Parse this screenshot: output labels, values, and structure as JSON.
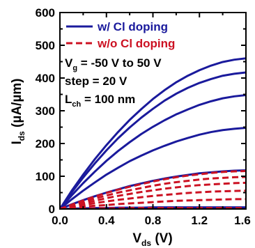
{
  "chart_data": {
    "type": "line",
    "xlabel_main": "V",
    "xlabel_sub": "ds",
    "xlabel_unit": " (V)",
    "ylabel_main": "I",
    "ylabel_sub": "ds",
    "ylabel_unit": " (µA/µm)",
    "xlim": [
      0.0,
      1.6
    ],
    "ylim": [
      0,
      600
    ],
    "x_ticks": [
      0.0,
      0.4,
      0.8,
      1.2,
      1.6
    ],
    "x_tick_labels": [
      "0.0",
      "0.4",
      "0.8",
      "1.2",
      "1.6"
    ],
    "y_ticks": [
      0,
      100,
      200,
      300,
      400,
      500,
      600
    ],
    "y_tick_labels": [
      "0",
      "100",
      "200",
      "300",
      "400",
      "500",
      "600"
    ],
    "grid": false,
    "legend_position": "top-left",
    "legend": [
      {
        "label": "w/ Cl doping",
        "color": "#1a1a9c",
        "dash": "solid"
      },
      {
        "label": "w/o Cl doping",
        "color": "#cc1122",
        "dash": "dashed"
      }
    ],
    "annotations": {
      "vg_main": "V",
      "vg_sub": "g",
      "vg_rest": " = -50 V to 50 V",
      "step": "step = 20 V",
      "lch_main": "L",
      "lch_sub": "ch",
      "lch_rest": " = 100 nm"
    },
    "x": [
      0.0,
      0.1,
      0.2,
      0.3,
      0.4,
      0.5,
      0.6,
      0.7,
      0.8,
      0.9,
      1.0,
      1.1,
      1.2,
      1.3,
      1.4,
      1.5,
      1.6
    ],
    "series": [
      {
        "group": "w/ Cl doping",
        "color": "#1a1a9c",
        "dash": "solid",
        "values": [
          0,
          55,
          105,
          152,
          195,
          235,
          272,
          305,
          336,
          363,
          387,
          407,
          424,
          438,
          449,
          456,
          460
        ]
      },
      {
        "group": "w/ Cl doping",
        "color": "#1a1a9c",
        "dash": "solid",
        "values": [
          0,
          50,
          96,
          139,
          179,
          216,
          249,
          279,
          306,
          331,
          352,
          370,
          385,
          397,
          407,
          413,
          417
        ]
      },
      {
        "group": "w/ Cl doping",
        "color": "#1a1a9c",
        "dash": "solid",
        "values": [
          0,
          41,
          79,
          114,
          147,
          177,
          204,
          229,
          251,
          271,
          289,
          304,
          318,
          329,
          338,
          344,
          348
        ]
      },
      {
        "group": "w/ Cl doping",
        "color": "#1a1a9c",
        "dash": "solid",
        "values": [
          0,
          29,
          56,
          81,
          105,
          126,
          146,
          163,
          179,
          193,
          206,
          217,
          227,
          235,
          241,
          245,
          248
        ]
      },
      {
        "group": "w/ Cl doping",
        "color": "#1a1a9c",
        "dash": "solid",
        "values": [
          0,
          14,
          27,
          39,
          50,
          60,
          70,
          78,
          86,
          93,
          99,
          104,
          109,
          112,
          115,
          117,
          118
        ]
      },
      {
        "group": "w/ Cl doping",
        "color": "#1a1a9c",
        "dash": "solid",
        "values": [
          0,
          1,
          2,
          3,
          3,
          4,
          4,
          4,
          5,
          5,
          5,
          5,
          5,
          5,
          5,
          5,
          5
        ]
      },
      {
        "group": "w/o Cl doping",
        "color": "#cc1122",
        "dash": "dashed",
        "values": [
          0,
          13,
          26,
          38,
          49,
          59,
          68,
          76,
          84,
          91,
          97,
          102,
          106,
          110,
          113,
          115,
          116
        ]
      },
      {
        "group": "w/o Cl doping",
        "color": "#cc1122",
        "dash": "dashed",
        "values": [
          0,
          11,
          22,
          32,
          41,
          50,
          57,
          64,
          71,
          77,
          82,
          86,
          90,
          93,
          95,
          97,
          98
        ]
      },
      {
        "group": "w/o Cl doping",
        "color": "#cc1122",
        "dash": "dashed",
        "values": [
          0,
          9,
          17,
          25,
          33,
          40,
          46,
          52,
          57,
          62,
          66,
          70,
          73,
          75,
          77,
          79,
          80
        ]
      },
      {
        "group": "w/o Cl doping",
        "color": "#cc1122",
        "dash": "dashed",
        "values": [
          0,
          6,
          12,
          18,
          23,
          28,
          32,
          36,
          40,
          43,
          46,
          49,
          51,
          53,
          54,
          55,
          56
        ]
      },
      {
        "group": "w/o Cl doping",
        "color": "#cc1122",
        "dash": "dashed",
        "values": [
          0,
          3,
          7,
          10,
          12,
          15,
          17,
          19,
          21,
          23,
          25,
          26,
          27,
          28,
          29,
          30,
          30
        ]
      },
      {
        "group": "w/o Cl doping",
        "color": "#cc1122",
        "dash": "dashed",
        "values": [
          0,
          1,
          1,
          2,
          2,
          2,
          3,
          3,
          3,
          3,
          3,
          3,
          3,
          3,
          3,
          3,
          3
        ]
      }
    ]
  }
}
